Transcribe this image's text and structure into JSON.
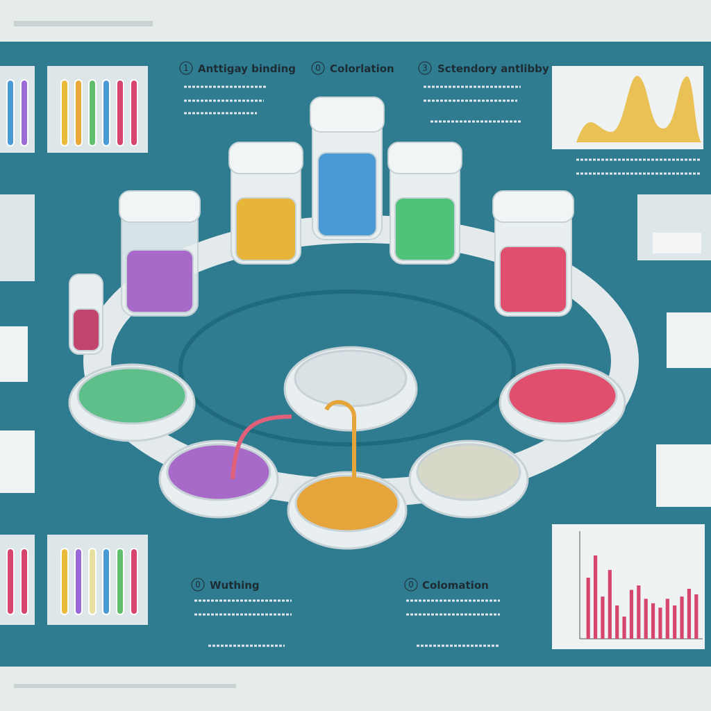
{
  "steps": [
    {
      "number": "1",
      "title": "Anttigay binding"
    },
    {
      "number": "0",
      "title": "Colorlation"
    },
    {
      "number": "3",
      "title": "Sctendory antlibby"
    },
    {
      "number": "0",
      "title": "Wuthing"
    },
    {
      "number": "0",
      "title": "Colomation"
    }
  ],
  "bar_chart": {
    "values": [
      55,
      75,
      38,
      62,
      30,
      20,
      44,
      48,
      36,
      32,
      28,
      36,
      30,
      38,
      45,
      40
    ],
    "color": "#d6456e"
  }
}
